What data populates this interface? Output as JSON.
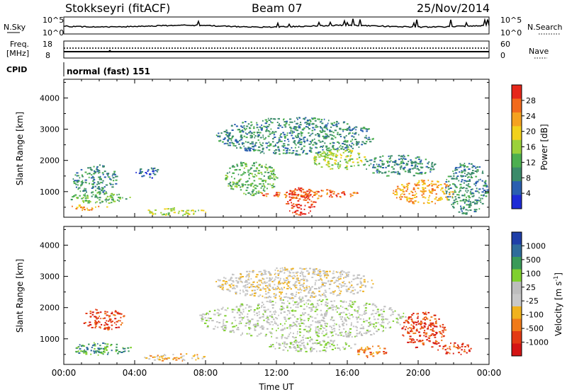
{
  "header": {
    "title": "Stokkseyri (fitACF)",
    "beam": "Beam 07",
    "date": "25/Nov/2014"
  },
  "colors": {
    "power_scale": [
      "#1e2bd6",
      "#2a5fb0",
      "#3b8b6a",
      "#4caf50",
      "#9bd13a",
      "#f2d11b",
      "#f5a21f",
      "#f26a1c",
      "#e6271a"
    ],
    "velocity_scale": [
      "#1f3fa8",
      "#2f6c9b",
      "#3a9a58",
      "#7fd02e",
      "#bdbdbd",
      "#c8c8c8",
      "#f0b21e",
      "#f07a19",
      "#e33a14",
      "#d41414"
    ]
  },
  "noise_panel": {
    "left_label": "N.Sky",
    "right_label": "N.Search",
    "left_ticks": [
      "10^5",
      "10^0"
    ],
    "right_ticks": [
      "10^5",
      "10^0"
    ]
  },
  "freq_panel": {
    "left_label_line1": "Freq.",
    "left_label_line2": "[MHz]",
    "right_label": "Nave",
    "left_ticks": [
      "18",
      "8"
    ],
    "right_ticks": [
      "60",
      "0"
    ]
  },
  "cpid_panel": {
    "label": "CPID",
    "program": "normal (fast) 151"
  },
  "chart_data": [
    {
      "type": "heatmap",
      "name": "power",
      "ylabel": "Slant Range [km]",
      "ylim": [
        180,
        4600
      ],
      "yticks": [
        "1000",
        "2000",
        "3000",
        "4000"
      ],
      "ytick_values": [
        1000,
        2000,
        3000,
        4000
      ],
      "xlim": [
        0,
        24
      ],
      "colorbar_label": "Power [dB]",
      "colorbar_ticks": [
        "4",
        "8",
        "12",
        "16",
        "20",
        "24",
        "28"
      ],
      "blobs": [
        {
          "t0": 0.3,
          "t1": 3.8,
          "r0": 650,
          "r1": 1000,
          "level": 3
        },
        {
          "t0": 0.2,
          "t1": 2.5,
          "r0": 420,
          "r1": 600,
          "level": 6
        },
        {
          "t0": 0.5,
          "t1": 3.0,
          "r0": 900,
          "r1": 1900,
          "level": 2
        },
        {
          "t0": 4.0,
          "t1": 5.5,
          "r0": 1450,
          "r1": 1800,
          "level": 1
        },
        {
          "t0": 4.5,
          "t1": 8.0,
          "r0": 250,
          "r1": 500,
          "level": 4
        },
        {
          "t0": 8.5,
          "t1": 17.5,
          "r0": 2200,
          "r1": 3400,
          "level": 2
        },
        {
          "t0": 9.0,
          "t1": 12.0,
          "r0": 900,
          "r1": 2000,
          "level": 3
        },
        {
          "t0": 11.0,
          "t1": 16.8,
          "r0": 800,
          "r1": 1100,
          "level": 7
        },
        {
          "t0": 12.5,
          "t1": 14.2,
          "r0": 250,
          "r1": 1150,
          "level": 8
        },
        {
          "t0": 14.0,
          "t1": 17.0,
          "r0": 1700,
          "r1": 2400,
          "level": 4
        },
        {
          "t0": 16.8,
          "t1": 21.0,
          "r0": 1500,
          "r1": 2200,
          "level": 2
        },
        {
          "t0": 18.5,
          "t1": 22.0,
          "r0": 600,
          "r1": 1400,
          "level": 6
        },
        {
          "t0": 21.5,
          "t1": 23.9,
          "r0": 300,
          "r1": 2000,
          "level": 2
        }
      ]
    },
    {
      "type": "heatmap",
      "name": "velocity",
      "ylabel": "Slant Range [km]",
      "ylim": [
        180,
        4600
      ],
      "yticks": [
        "1000",
        "2000",
        "3000",
        "4000"
      ],
      "ytick_values": [
        1000,
        2000,
        3000,
        4000
      ],
      "xlim": [
        0,
        24
      ],
      "xlabel": "Time UT",
      "xticks": [
        "00:00",
        "04:00",
        "08:00",
        "12:00",
        "16:00",
        "20:00",
        "00:00"
      ],
      "colorbar_label": "Velocity [m s",
      "colorbar_ticks": [
        "1000",
        "500",
        "100",
        "25",
        "-25",
        "-100",
        "-500",
        "-1000"
      ],
      "blobs": [
        {
          "t0": 0.3,
          "t1": 3.8,
          "r0": 500,
          "r1": 900,
          "level": 2
        },
        {
          "t0": 1.0,
          "t1": 3.5,
          "r0": 1300,
          "r1": 2000,
          "level": 8
        },
        {
          "t0": 4.5,
          "t1": 8.0,
          "r0": 300,
          "r1": 550,
          "level": 6
        },
        {
          "t0": 7.5,
          "t1": 19.5,
          "r0": 1000,
          "r1": 2300,
          "level": 4
        },
        {
          "t0": 8.5,
          "t1": 17.5,
          "r0": 2300,
          "r1": 3300,
          "level": 5
        },
        {
          "t0": 11.5,
          "t1": 16.5,
          "r0": 600,
          "r1": 1000,
          "level": 4
        },
        {
          "t0": 16.5,
          "t1": 18.3,
          "r0": 400,
          "r1": 800,
          "level": 7
        },
        {
          "t0": 19.0,
          "t1": 21.5,
          "r0": 700,
          "r1": 1900,
          "level": 8
        },
        {
          "t0": 21.0,
          "t1": 23.0,
          "r0": 500,
          "r1": 900,
          "level": 8
        }
      ]
    }
  ]
}
